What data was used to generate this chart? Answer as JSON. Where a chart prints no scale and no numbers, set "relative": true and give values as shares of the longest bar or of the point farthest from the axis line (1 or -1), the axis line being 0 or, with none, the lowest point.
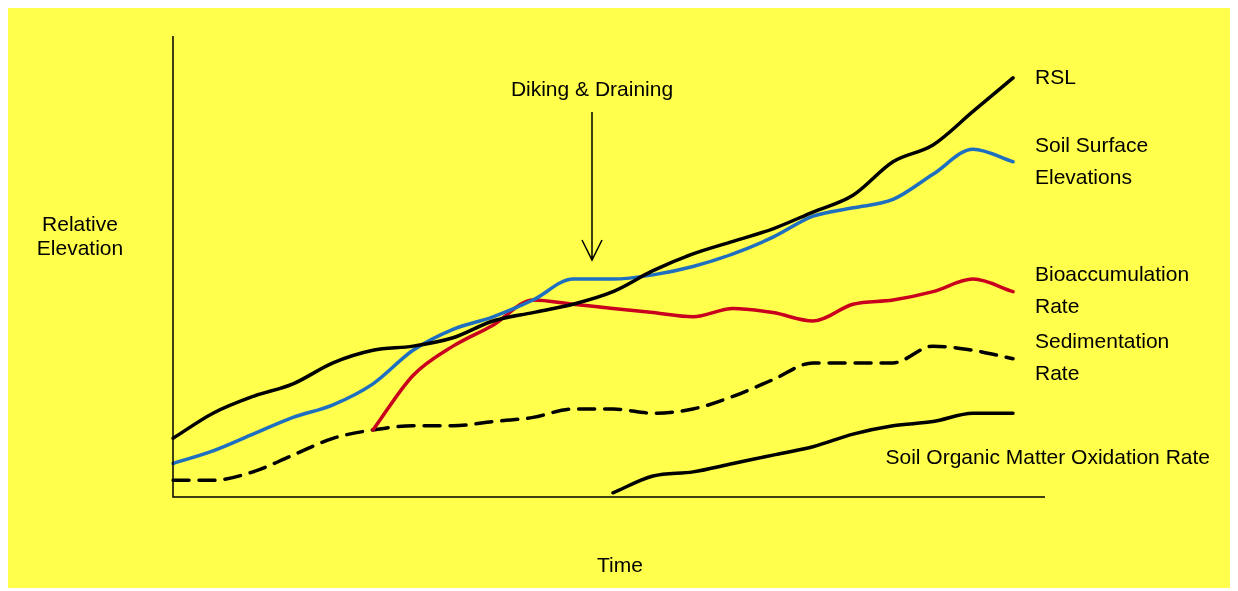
{
  "chart_data": {
    "type": "line",
    "relative": true,
    "xlabel": "Time",
    "ylabel": "Relative Elevation",
    "annotations": [
      "Diking & Draining"
    ],
    "categories": [
      null,
      null,
      null,
      null,
      null,
      null,
      null,
      null,
      null,
      null,
      null,
      null,
      null,
      null,
      null,
      null,
      null,
      null,
      null,
      null,
      null,
      null,
      null
    ],
    "series": [
      {
        "name": "RSL",
        "color": "#000000",
        "values": [
          0.14,
          0.2,
          0.24,
          0.27,
          0.32,
          0.35,
          0.36,
          0.38,
          0.42,
          0.44,
          0.46,
          0.49,
          0.54,
          0.58,
          0.61,
          0.64,
          0.68,
          0.72,
          0.8,
          0.84,
          0.92,
          1,
          null
        ]
      },
      {
        "name": "Soil Surface Elevations",
        "color": "#1f6fc0",
        "values": [
          0.08,
          0.11,
          0.15,
          0.19,
          0.22,
          0.27,
          0.35,
          0.4,
          0.43,
          0.47,
          0.52,
          0.52,
          0.53,
          0.55,
          0.58,
          0.62,
          0.67,
          0.69,
          0.71,
          0.77,
          0.83,
          0.8,
          null
        ]
      },
      {
        "name": "Bioaccumulation Rate",
        "color": "#c8001e",
        "values": [
          null,
          null,
          null,
          null,
          null,
          0.16,
          0.29,
          0.36,
          0.41,
          0.47,
          0.46,
          0.45,
          0.44,
          0.43,
          0.45,
          0.44,
          0.42,
          0.46,
          0.47,
          0.49,
          0.52,
          0.49,
          null
        ]
      },
      {
        "name": "Sedimentation Rate",
        "color": "#000000",
        "line_style": "dashed",
        "values": [
          0.04,
          0.04,
          0.06,
          0.1,
          0.14,
          0.16,
          0.17,
          0.17,
          0.18,
          0.19,
          0.21,
          0.21,
          0.2,
          0.21,
          0.24,
          0.28,
          0.32,
          0.32,
          0.32,
          0.36,
          0.35,
          0.33,
          null
        ]
      },
      {
        "name": "Soil Organic Matter Oxidation Rate",
        "color": "#000000",
        "values": [
          null,
          null,
          null,
          null,
          null,
          null,
          null,
          null,
          null,
          null,
          null,
          0.01,
          0.05,
          0.06,
          0.08,
          0.1,
          0.12,
          0.15,
          0.17,
          0.18,
          0.2,
          0.2,
          null
        ]
      }
    ]
  }
}
